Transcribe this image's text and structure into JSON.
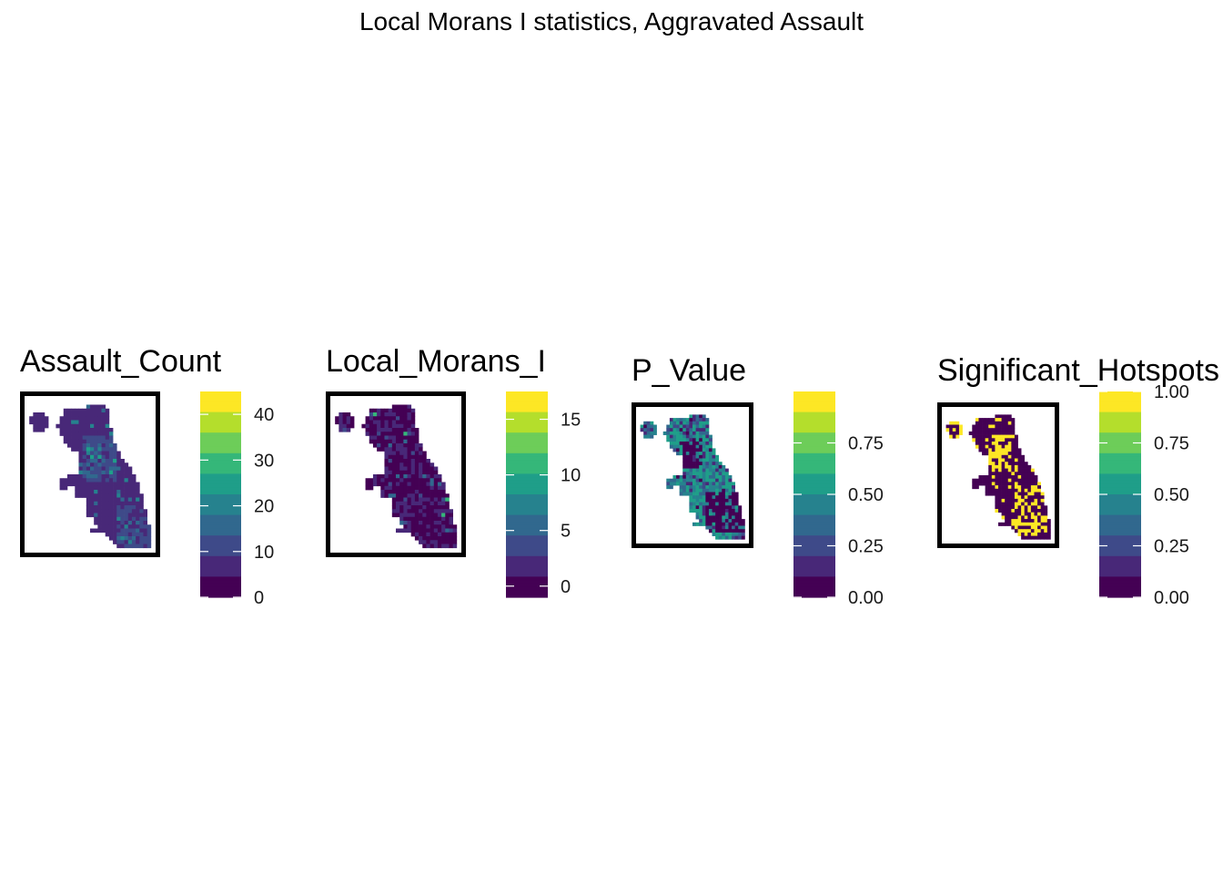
{
  "figure_title": "Local Morans I statistics, Aggravated Assault",
  "palette": [
    "#440154",
    "#482878",
    "#3E4A89",
    "#31688E",
    "#26828E",
    "#1F9E89",
    "#35B779",
    "#6DCD59",
    "#B4DE2C",
    "#FDE725"
  ],
  "chart_data": [
    {
      "type": "heatmap",
      "title": "Assault_Count",
      "legend": {
        "min": 0,
        "max": 45,
        "ticks": [
          0,
          10,
          20,
          30,
          40
        ]
      },
      "fill_variable": "Assault_Count"
    },
    {
      "type": "heatmap",
      "title": "Local_Morans_I",
      "legend": {
        "min": -1,
        "max": 17.5,
        "ticks": [
          0,
          5,
          10,
          15
        ]
      },
      "fill_variable": "Local_Morans_I"
    },
    {
      "type": "heatmap",
      "title": "P_Value",
      "legend": {
        "min": 0,
        "max": 1,
        "ticks": [
          "0.00",
          "0.25",
          "0.50",
          "0.75"
        ]
      },
      "fill_variable": "P_Value"
    },
    {
      "type": "heatmap",
      "title": "Significant_Hotspots",
      "legend": {
        "min": 0,
        "max": 1,
        "ticks": [
          "0.00",
          "0.25",
          "0.50",
          "0.75",
          "1.00"
        ]
      },
      "fill_variable": "Significant_Hotspots"
    }
  ]
}
